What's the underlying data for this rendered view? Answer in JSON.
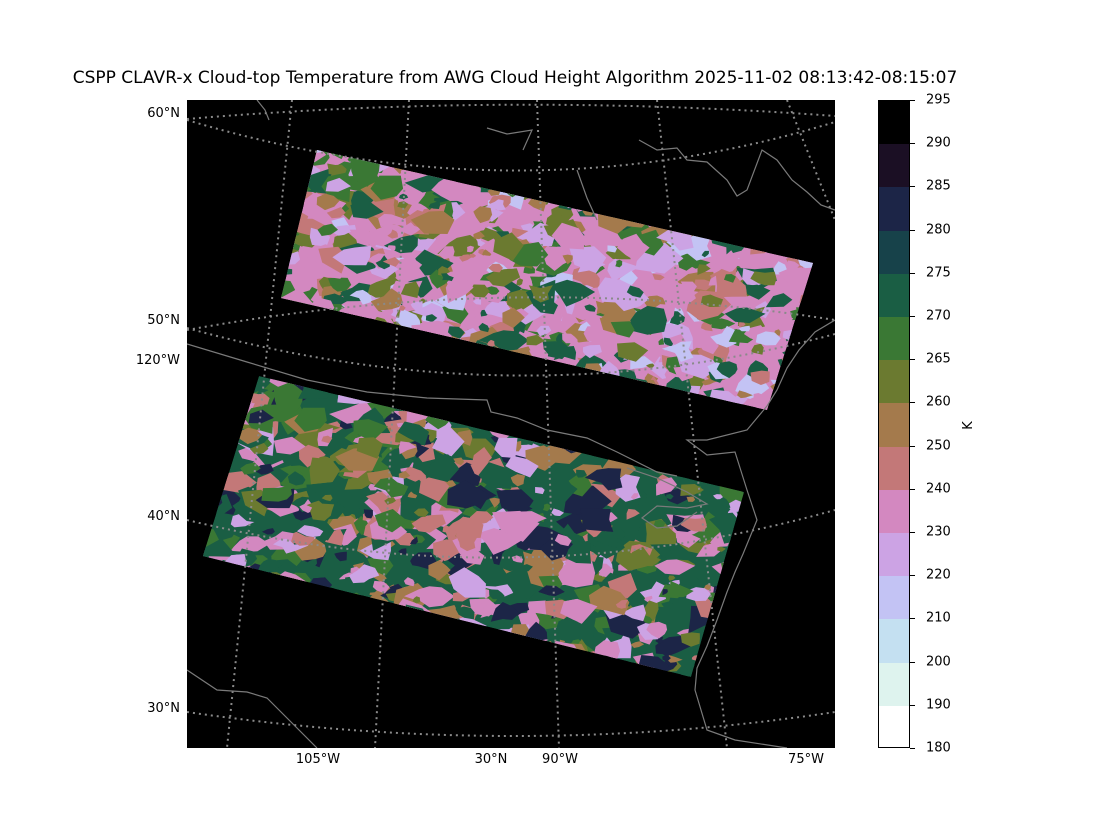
{
  "title": "CSPP CLAVR-x Cloud-top Temperature from AWG Cloud Height Algorithm 2025-11-02 08:13:42-08:15:07",
  "map": {
    "left_labels": [
      "60°N",
      "50°N",
      "120°W",
      "40°N",
      "30°N"
    ],
    "bottom_labels": [
      "105°W",
      "30°N",
      "90°W",
      "75°W"
    ],
    "background_color": "#000000",
    "graticule_color": "#8a8a8a",
    "coastline_color": "#7a7a7a"
  },
  "colorbar": {
    "unit": "K",
    "ticks": [
      "295",
      "290",
      "285",
      "280",
      "275",
      "270",
      "265",
      "260",
      "250",
      "240",
      "230",
      "220",
      "210",
      "200",
      "190",
      "180"
    ],
    "colors": [
      "#000000",
      "#1b0f24",
      "#1c2547",
      "#17424a",
      "#1a5e44",
      "#3a7834",
      "#6b7a30",
      "#a47a4c",
      "#c37878",
      "#d388c0",
      "#cca3e4",
      "#c3c3f4",
      "#c4e0f1",
      "#def3ee",
      "#ffffff"
    ]
  },
  "swaths": {
    "north_colors": [
      "#d388c0",
      "#3a7834",
      "#1a5e44",
      "#6b7a30",
      "#c37878",
      "#cca3e4",
      "#a47a4c",
      "#c3c3f4"
    ],
    "south_colors": [
      "#1a5e44",
      "#3a7834",
      "#d388c0",
      "#c37878",
      "#6b7a30",
      "#1c2547",
      "#a47a4c",
      "#cca3e4"
    ]
  }
}
